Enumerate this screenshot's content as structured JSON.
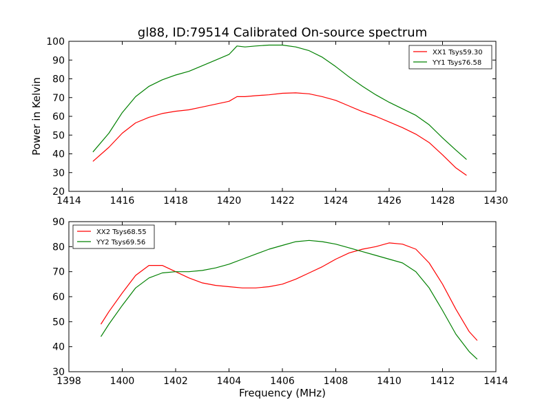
{
  "chart_data": [
    {
      "type": "line",
      "title": "gl88, ID:79514 Calibrated On-source spectrum",
      "xlabel": "",
      "ylabel": "Power in Kelvin",
      "xlim": [
        1414,
        1430
      ],
      "ylim": [
        20,
        100
      ],
      "xticks": [
        1414,
        1416,
        1418,
        1420,
        1422,
        1424,
        1426,
        1428,
        1430
      ],
      "yticks": [
        20,
        30,
        40,
        50,
        60,
        70,
        80,
        90,
        100
      ],
      "legend": "top-right",
      "series": [
        {
          "name": "XX1 Tsys59.30",
          "color": "#ff0000",
          "x": [
            1414.9,
            1415.5,
            1416.0,
            1416.5,
            1417.0,
            1417.5,
            1418.0,
            1418.5,
            1419.0,
            1419.5,
            1420.0,
            1420.3,
            1420.6,
            1421.0,
            1421.5,
            1422.0,
            1422.5,
            1423.0,
            1423.5,
            1424.0,
            1424.5,
            1425.0,
            1425.5,
            1426.0,
            1426.5,
            1427.0,
            1427.5,
            1428.0,
            1428.5,
            1428.9
          ],
          "y": [
            36,
            43.5,
            51,
            56.5,
            59.5,
            61.5,
            62.7,
            63.5,
            65,
            66.5,
            68,
            70.5,
            70.5,
            71,
            71.5,
            72.3,
            72.5,
            72,
            70.5,
            68.5,
            65.5,
            62.5,
            60,
            57,
            54,
            50.5,
            46,
            39.5,
            32.5,
            28.5
          ]
        },
        {
          "name": "YY1 Tsys76.58",
          "color": "#008000",
          "x": [
            1414.9,
            1415.5,
            1416.0,
            1416.5,
            1417.0,
            1417.5,
            1418.0,
            1418.5,
            1419.0,
            1419.5,
            1420.0,
            1420.3,
            1420.6,
            1421.0,
            1421.5,
            1422.0,
            1422.5,
            1423.0,
            1423.5,
            1424.0,
            1424.5,
            1425.0,
            1425.5,
            1426.0,
            1426.5,
            1427.0,
            1427.5,
            1428.0,
            1428.5,
            1428.9
          ],
          "y": [
            41,
            51,
            62,
            70.5,
            76,
            79.5,
            82,
            84,
            87,
            90,
            93,
            97.5,
            97,
            97.5,
            98,
            98,
            97,
            95,
            91.5,
            86.5,
            81,
            76,
            71.5,
            67.5,
            64,
            60.5,
            55.5,
            48.5,
            42,
            37
          ]
        }
      ]
    },
    {
      "type": "line",
      "title": "",
      "xlabel": "Frequency (MHz)",
      "ylabel": "",
      "xlim": [
        1398,
        1414
      ],
      "ylim": [
        30,
        90
      ],
      "xticks": [
        1398,
        1400,
        1402,
        1404,
        1406,
        1408,
        1410,
        1412,
        1414
      ],
      "yticks": [
        30,
        40,
        50,
        60,
        70,
        80,
        90
      ],
      "legend": "top-left",
      "series": [
        {
          "name": "XX2 Tsys68.55",
          "color": "#ff0000",
          "x": [
            1399.2,
            1399.5,
            1400.0,
            1400.5,
            1401.0,
            1401.5,
            1402.0,
            1402.5,
            1403.0,
            1403.5,
            1404.0,
            1404.5,
            1405.0,
            1405.5,
            1406.0,
            1406.5,
            1407.0,
            1407.5,
            1408.0,
            1408.5,
            1409.0,
            1409.5,
            1410.0,
            1410.5,
            1411.0,
            1411.5,
            1412.0,
            1412.5,
            1413.0,
            1413.3
          ],
          "y": [
            49,
            54,
            61.5,
            68.5,
            72.5,
            72.5,
            70,
            67.5,
            65.5,
            64.5,
            64,
            63.5,
            63.5,
            64,
            65,
            67,
            69.5,
            72,
            75,
            77.5,
            79,
            80,
            81.5,
            81,
            79,
            73.5,
            65,
            55,
            46,
            42.5
          ]
        },
        {
          "name": "YY2 Tsys69.56",
          "color": "#008000",
          "x": [
            1399.2,
            1399.5,
            1400.0,
            1400.5,
            1401.0,
            1401.5,
            1402.0,
            1402.5,
            1403.0,
            1403.5,
            1404.0,
            1404.5,
            1405.0,
            1405.5,
            1406.0,
            1406.5,
            1407.0,
            1407.5,
            1408.0,
            1408.5,
            1409.0,
            1409.5,
            1410.0,
            1410.5,
            1411.0,
            1411.5,
            1412.0,
            1412.5,
            1413.0,
            1413.3
          ],
          "y": [
            44,
            49,
            56.5,
            63.5,
            67.5,
            69.5,
            70,
            70,
            70.5,
            71.5,
            73,
            75,
            77,
            79,
            80.5,
            82,
            82.5,
            82,
            81,
            79.5,
            78,
            76.5,
            75,
            73.5,
            70,
            63.5,
            54.5,
            45,
            38,
            35
          ]
        }
      ]
    }
  ]
}
